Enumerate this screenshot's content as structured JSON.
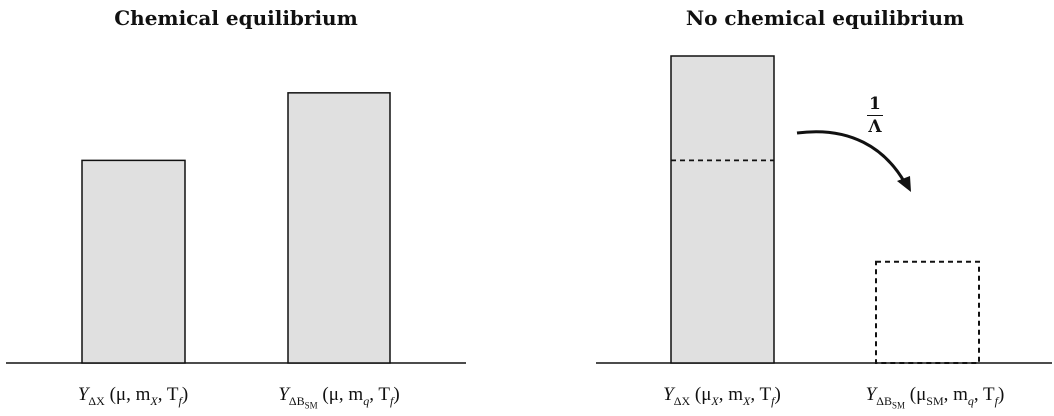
{
  "panels": {
    "left": {
      "title": "Chemical equilibrium",
      "bars": [
        {
          "label_main": "Y",
          "label_sub": "ΔX",
          "label_args": "(μ, m",
          "args_sub1": "X",
          "args_rest": ", T",
          "args_sub2": "f",
          "args_end": ")",
          "relative_height": 0.66,
          "fill": "#e0e0e0",
          "style": "solid"
        },
        {
          "label_main": "Y",
          "label_sub": "ΔB",
          "label_subsub": "SM",
          "label_args": "(μ, m",
          "args_sub1": "q",
          "args_rest": ", T",
          "args_sub2": "f",
          "args_end": ")",
          "relative_height": 0.88,
          "fill": "#e0e0e0",
          "style": "solid"
        }
      ]
    },
    "right": {
      "title": "No chemical equilibrium",
      "bars": [
        {
          "label_main": "Y",
          "label_sub": "ΔX",
          "label_args": "(μ",
          "args_sub0": "X",
          "args_mid": ", m",
          "args_sub1": "X",
          "args_rest": ", T",
          "args_sub2": "f",
          "args_end": ")",
          "relative_height": 1.0,
          "fill": "#e0e0e0",
          "style": "solid",
          "inner_dashed_level": 0.66
        },
        {
          "label_main": "Y",
          "label_sub": "ΔB",
          "label_subsub": "SM",
          "label_args": "(μ",
          "args_sub0": "SM",
          "args_mid": ", m",
          "args_sub1": "q",
          "args_rest": ", T",
          "args_sub2": "f",
          "args_end": ")",
          "relative_height": 0.33,
          "fill": "none",
          "style": "dashed"
        }
      ],
      "arrow_label": {
        "numerator": "1",
        "denominator": "Λ"
      }
    }
  },
  "colors": {
    "stroke": "#111111",
    "bar_fill": "#e0e0e0"
  }
}
